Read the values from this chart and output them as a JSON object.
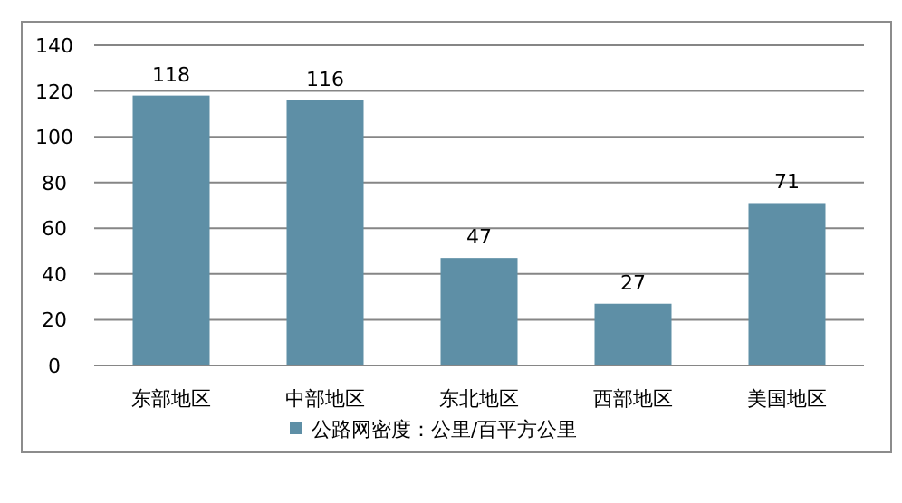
{
  "chart_data": {
    "type": "bar",
    "categories": [
      "东部地区",
      "中部地区",
      "东北地区",
      "西部地区",
      "美国地区"
    ],
    "series": [
      {
        "name": "公路网密度：公里/百平方公里",
        "color": "#5e8fa6",
        "values": [
          118,
          116,
          47,
          27,
          71
        ]
      }
    ],
    "ylim": [
      0,
      140
    ],
    "yticks": [
      0,
      20,
      40,
      60,
      80,
      100,
      120,
      140
    ],
    "grid": "y",
    "data_labels": true,
    "legend": "bottom"
  }
}
